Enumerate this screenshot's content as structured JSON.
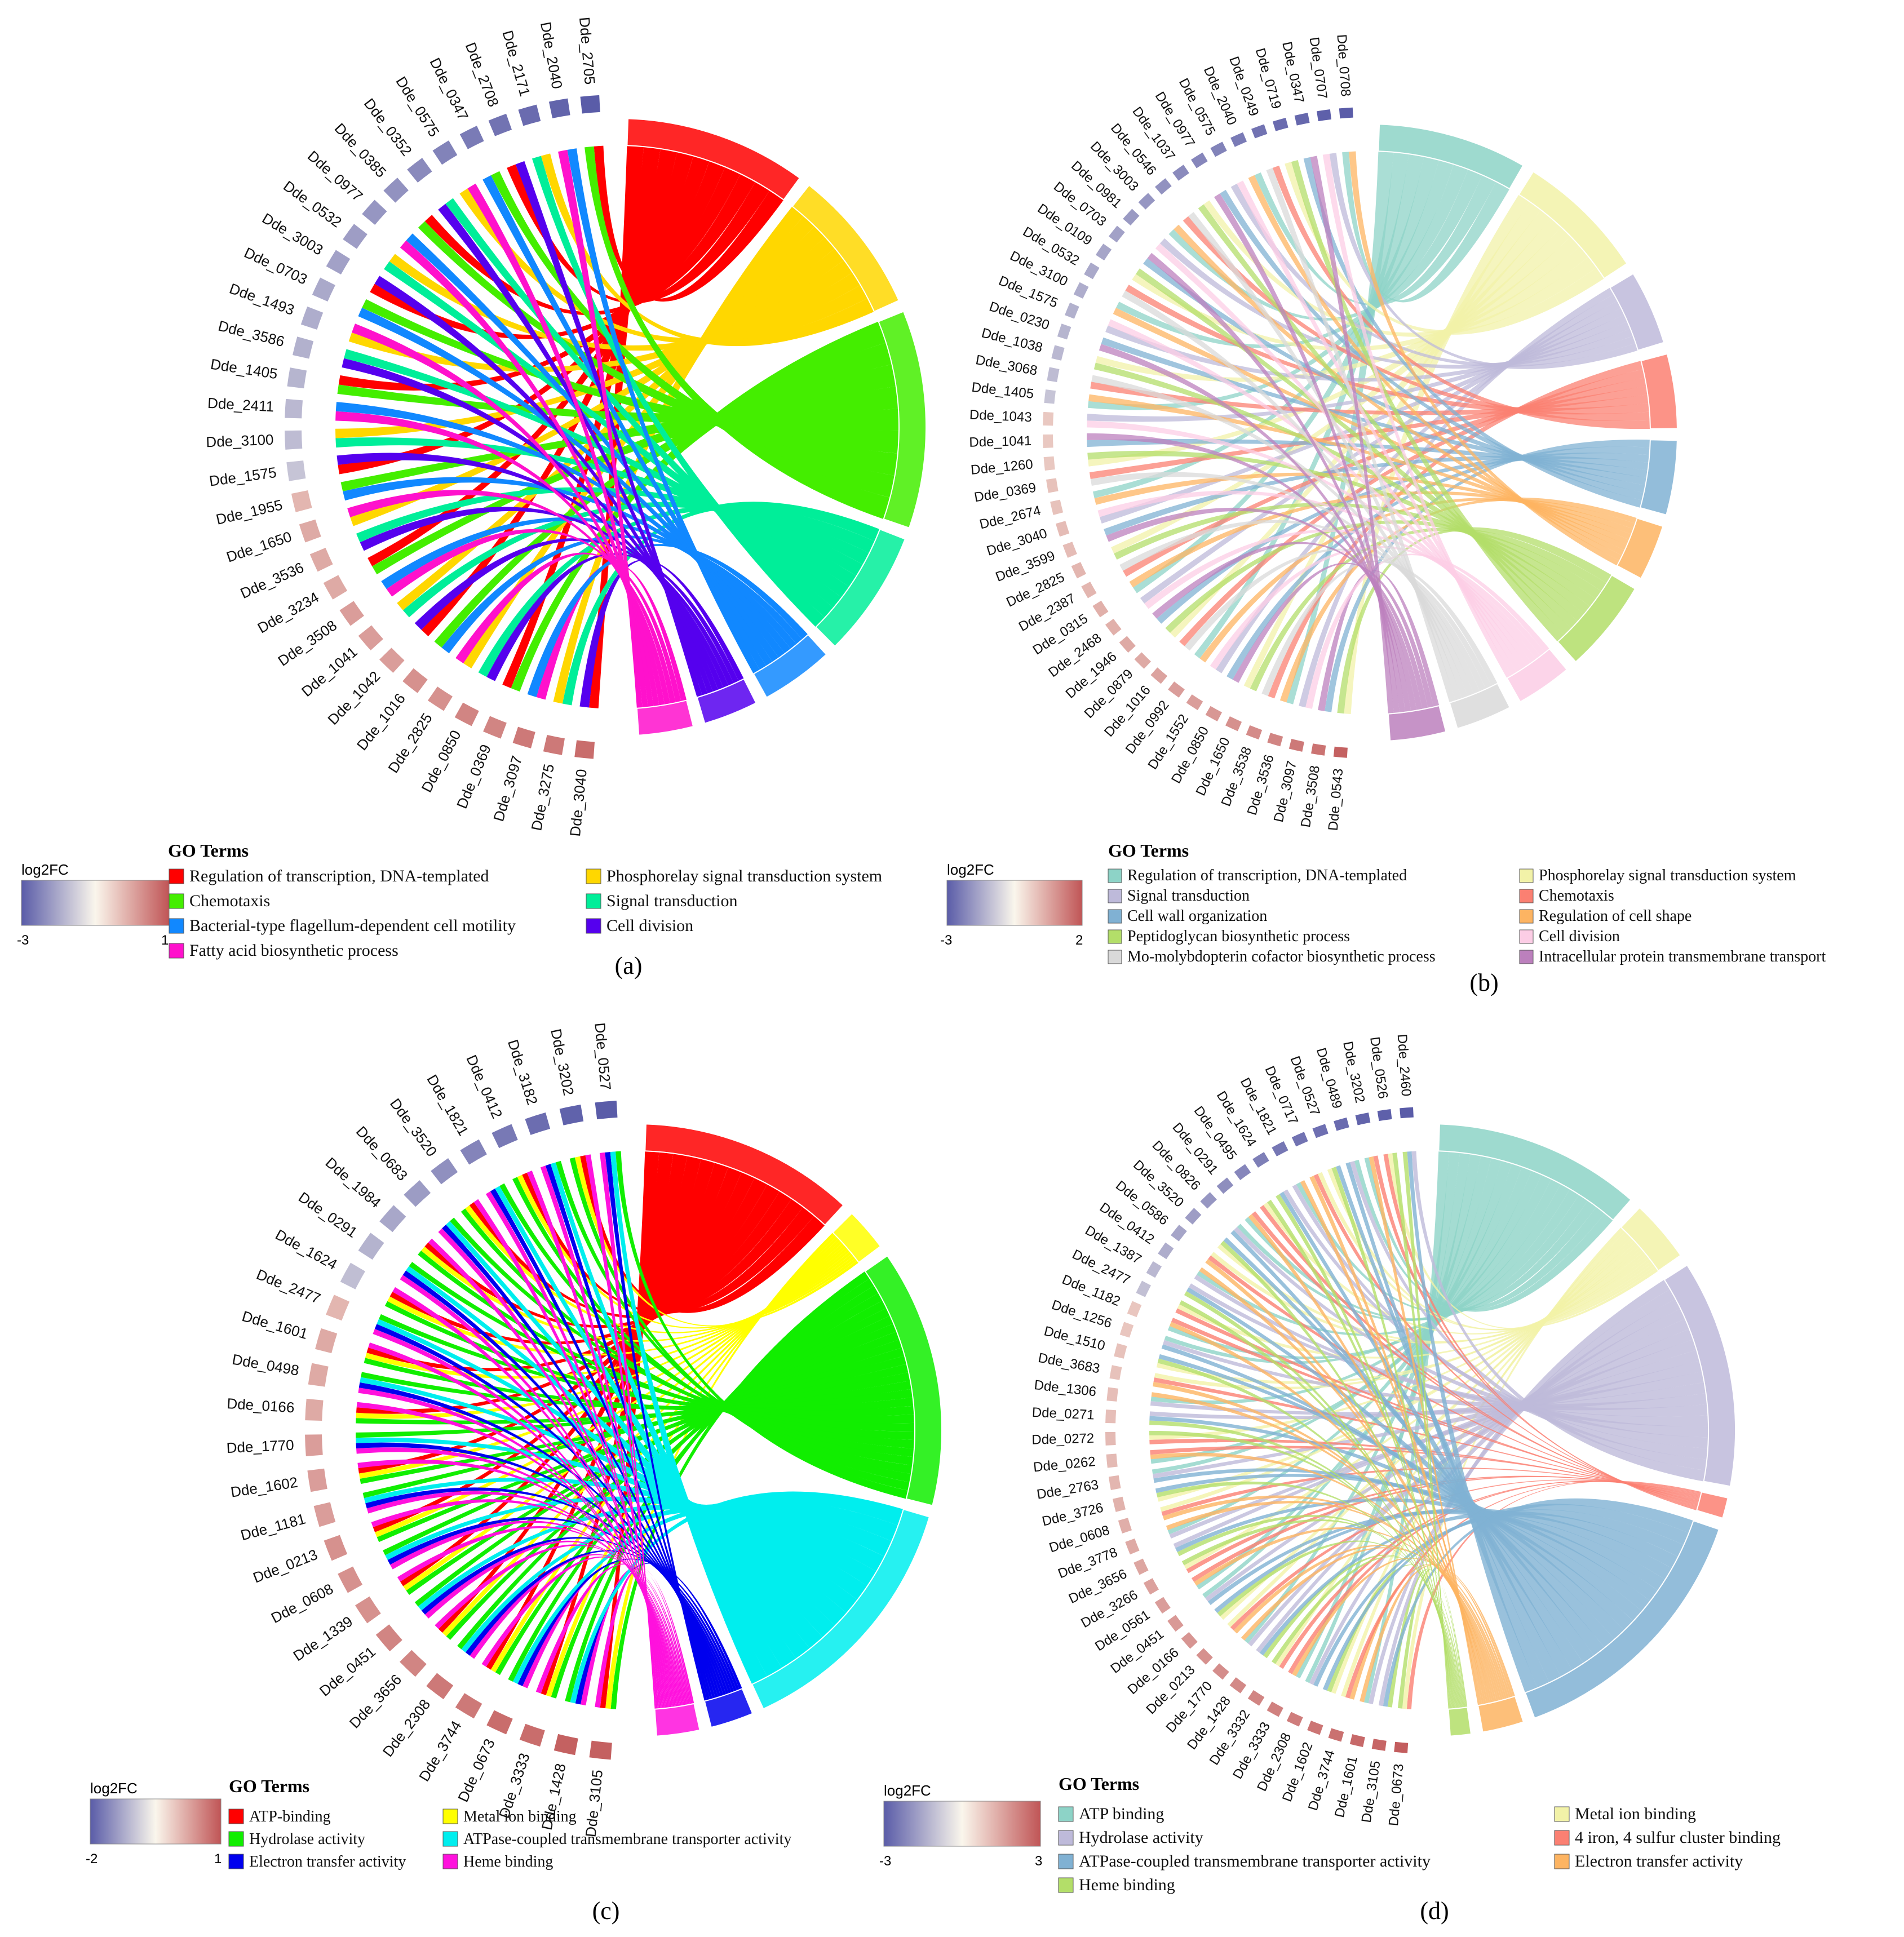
{
  "figure": {
    "panels": [
      "(a)",
      "(b)",
      "(c)",
      "(d)"
    ]
  },
  "chart_data": [
    {
      "id": "a",
      "type": "chord",
      "panel_label": "(a)",
      "legend_title": "GO Terms",
      "colorbar": {
        "label": "log2FC",
        "min": "-3",
        "max": "1"
      },
      "terms": [
        {
          "name": "Regulation of transcription, DNA-templated",
          "color": "#ff0000",
          "size": 10
        },
        {
          "name": "Phosphorelay signal transduction system",
          "color": "#ffd700",
          "size": 8
        },
        {
          "name": "Chemotaxis",
          "color": "#44ee00",
          "size": 12
        },
        {
          "name": "Signal transduction",
          "color": "#00ee99",
          "size": 7
        },
        {
          "name": "Bacterial-type flagellum-dependent cell motility",
          "color": "#1188ff",
          "size": 4
        },
        {
          "name": "Cell division",
          "color": "#5500ee",
          "size": 3
        },
        {
          "name": "Fatty acid biosynthetic process",
          "color": "#ff11cc",
          "size": 3
        }
      ],
      "legend_order": [
        0,
        2,
        4,
        6,
        1,
        3,
        5
      ],
      "genes": [
        "Dde_3040",
        "Dde_3275",
        "Dde_3097",
        "Dde_0369",
        "Dde_0850",
        "Dde_2825",
        "Dde_1016",
        "Dde_1042",
        "Dde_1041",
        "Dde_3508",
        "Dde_3234",
        "Dde_3536",
        "Dde_1650",
        "Dde_1955",
        "Dde_1575",
        "Dde_3100",
        "Dde_2411",
        "Dde_1405",
        "Dde_3586",
        "Dde_1493",
        "Dde_0703",
        "Dde_3003",
        "Dde_0532",
        "Dde_0977",
        "Dde_0385",
        "Dde_0352",
        "Dde_0575",
        "Dde_0347",
        "Dde_2708",
        "Dde_2171",
        "Dde_2040",
        "Dde_2705"
      ],
      "log2fc": [
        0.8,
        0.7,
        0.7,
        0.6,
        0.6,
        0.5,
        0.5,
        0.4,
        0.4,
        0.4,
        0.3,
        0.3,
        0.3,
        0.2,
        -0.3,
        -0.5,
        -0.6,
        -0.7,
        -0.8,
        -0.9,
        -1.0,
        -1.2,
        -1.3,
        -1.5,
        -1.6,
        -1.8,
        -2.0,
        -2.2,
        -2.4,
        -2.6,
        -2.8,
        -3.0
      ],
      "links_per_gene": 2,
      "link_opacity": 1.0
    },
    {
      "id": "b",
      "type": "chord",
      "panel_label": "(b)",
      "legend_title": "GO Terms",
      "colorbar": {
        "label": "log2FC",
        "min": "-3",
        "max": "2"
      },
      "terms": [
        {
          "name": "Regulation of transcription, DNA-templated",
          "color": "#8dd3c7",
          "size": 8
        },
        {
          "name": "Phosphorelay signal transduction system",
          "color": "#f2f2a8",
          "size": 7
        },
        {
          "name": "Signal transduction",
          "color": "#bebada",
          "size": 4
        },
        {
          "name": "Chemotaxis",
          "color": "#fb8072",
          "size": 4
        },
        {
          "name": "Cell wall organization",
          "color": "#80b1d3",
          "size": 4
        },
        {
          "name": "Regulation of cell shape",
          "color": "#fdb462",
          "size": 3
        },
        {
          "name": "Peptidoglycan biosynthetic process",
          "color": "#b3de69",
          "size": 5
        },
        {
          "name": "Cell division",
          "color": "#fccde5",
          "size": 3
        },
        {
          "name": "Mo-molybdopterin cofactor biosynthetic process",
          "color": "#d9d9d9",
          "size": 3
        },
        {
          "name": "Intracellular protein transmembrane transport",
          "color": "#bc80bd",
          "size": 3
        }
      ],
      "legend_order": [
        0,
        2,
        4,
        6,
        8,
        1,
        3,
        5,
        7,
        9
      ],
      "genes": [
        "Dde_0543",
        "Dde_3508",
        "Dde_3097",
        "Dde_3536",
        "Dde_3538",
        "Dde_1650",
        "Dde_0850",
        "Dde_1552",
        "Dde_0992",
        "Dde_1016",
        "Dde_0879",
        "Dde_1946",
        "Dde_2468",
        "Dde_0315",
        "Dde_2387",
        "Dde_2825",
        "Dde_3599",
        "Dde_3040",
        "Dde_2674",
        "Dde_0369",
        "Dde_1260",
        "Dde_1041",
        "Dde_1043",
        "Dde_1405",
        "Dde_3068",
        "Dde_1038",
        "Dde_0230",
        "Dde_1575",
        "Dde_3100",
        "Dde_0532",
        "Dde_0109",
        "Dde_0703",
        "Dde_0981",
        "Dde_3003",
        "Dde_0546",
        "Dde_1037",
        "Dde_0977",
        "Dde_0575",
        "Dde_2040",
        "Dde_0249",
        "Dde_0719",
        "Dde_0347",
        "Dde_0707",
        "Dde_0708"
      ],
      "log2fc": [
        1.8,
        1.5,
        1.4,
        1.2,
        1.1,
        1.0,
        0.9,
        0.8,
        0.8,
        0.7,
        0.6,
        0.6,
        0.5,
        0.5,
        0.4,
        0.4,
        0.3,
        0.3,
        0.2,
        0.2,
        0.1,
        0.1,
        0.1,
        -0.3,
        -0.5,
        -0.6,
        -0.7,
        -0.8,
        -0.9,
        -1.0,
        -1.1,
        -1.2,
        -1.4,
        -1.5,
        -1.6,
        -1.8,
        -1.9,
        -2.0,
        -2.2,
        -2.4,
        -2.6,
        -2.7,
        -2.9,
        -3.0
      ],
      "links_per_gene": 2,
      "link_opacity": 0.75
    },
    {
      "id": "c",
      "type": "chord",
      "panel_label": "(c)",
      "legend_title": "GO Terms",
      "colorbar": {
        "label": "log2FC",
        "min": "-2",
        "max": "1"
      },
      "terms": [
        {
          "name": "ATP-binding",
          "color": "#ff0000",
          "size": 10
        },
        {
          "name": "Metal ion binding",
          "color": "#ffff00",
          "size": 2
        },
        {
          "name": "Hydrolase activity",
          "color": "#11ee00",
          "size": 12
        },
        {
          "name": "ATPase-coupled transmembrane transporter activity",
          "color": "#00eeee",
          "size": 12
        },
        {
          "name": "Electron transfer activity",
          "color": "#0000ee",
          "size": 2
        },
        {
          "name": "Heme binding",
          "color": "#ff11dd",
          "size": 2
        }
      ],
      "legend_order": [
        0,
        2,
        4,
        1,
        3,
        5
      ],
      "genes": [
        "Dde_3105",
        "Dde_1428",
        "Dde_3333",
        "Dde_0673",
        "Dde_3744",
        "Dde_2308",
        "Dde_3656",
        "Dde_0451",
        "Dde_1339",
        "Dde_0608",
        "Dde_0213",
        "Dde_1181",
        "Dde_1602",
        "Dde_1770",
        "Dde_0166",
        "Dde_0498",
        "Dde_1601",
        "Dde_2477",
        "Dde_1624",
        "Dde_0291",
        "Dde_1984",
        "Dde_0683",
        "Dde_3520",
        "Dde_1821",
        "Dde_0412",
        "Dde_3182",
        "Dde_3202",
        "Dde_0527"
      ],
      "log2fc": [
        0.9,
        0.9,
        0.8,
        0.8,
        0.7,
        0.7,
        0.6,
        0.6,
        0.5,
        0.5,
        0.5,
        0.4,
        0.4,
        0.4,
        0.3,
        0.3,
        0.3,
        0.2,
        -0.3,
        -0.5,
        -0.7,
        -0.9,
        -1.1,
        -1.3,
        -1.5,
        -1.7,
        -1.9,
        -2.0
      ],
      "links_per_gene": 4,
      "link_opacity": 1.0
    },
    {
      "id": "d",
      "type": "chord",
      "panel_label": "(d)",
      "legend_title": "GO Terms",
      "colorbar": {
        "label": "log2FC",
        "min": "-3",
        "max": "3"
      },
      "terms": [
        {
          "name": "ATP binding",
          "color": "#8dd3c7",
          "size": 10
        },
        {
          "name": "Metal ion binding",
          "color": "#f2f2a8",
          "size": 3
        },
        {
          "name": "Hydrolase activity",
          "color": "#bebada",
          "size": 11
        },
        {
          "name": "4 iron, 4 sulfur cluster binding",
          "color": "#fb8072",
          "size": 1
        },
        {
          "name": "ATPase-coupled transmembrane transporter activity",
          "color": "#80b1d3",
          "size": 13
        },
        {
          "name": "Electron transfer activity",
          "color": "#fdb462",
          "size": 2
        },
        {
          "name": "Heme binding",
          "color": "#b3de69",
          "size": 1
        }
      ],
      "legend_order": [
        0,
        2,
        4,
        6,
        1,
        3,
        5
      ],
      "genes": [
        "Dde_0673",
        "Dde_3105",
        "Dde_1601",
        "Dde_3744",
        "Dde_1602",
        "Dde_2308",
        "Dde_3333",
        "Dde_3332",
        "Dde_1428",
        "Dde_1770",
        "Dde_0213",
        "Dde_0166",
        "Dde_0451",
        "Dde_0561",
        "Dde_3266",
        "Dde_3656",
        "Dde_3778",
        "Dde_0608",
        "Dde_3726",
        "Dde_2763",
        "Dde_0262",
        "Dde_0272",
        "Dde_0271",
        "Dde_1306",
        "Dde_3683",
        "Dde_1510",
        "Dde_1256",
        "Dde_1182",
        "Dde_2477",
        "Dde_1387",
        "Dde_0412",
        "Dde_0586",
        "Dde_3520",
        "Dde_0826",
        "Dde_0291",
        "Dde_0495",
        "Dde_1624",
        "Dde_1821",
        "Dde_0717",
        "Dde_0527",
        "Dde_0489",
        "Dde_3202",
        "Dde_0526",
        "Dde_2460"
      ],
      "log2fc": [
        2.8,
        2.6,
        2.5,
        2.3,
        2.2,
        2.0,
        1.9,
        1.8,
        1.7,
        1.6,
        1.5,
        1.4,
        1.3,
        1.2,
        1.1,
        1.0,
        0.9,
        0.8,
        0.7,
        0.6,
        0.5,
        0.5,
        0.4,
        0.4,
        0.3,
        0.3,
        0.2,
        0.2,
        -0.4,
        -0.6,
        -0.9,
        -1.1,
        -1.3,
        -1.5,
        -1.7,
        -1.9,
        -2.1,
        -2.3,
        -2.4,
        -2.5,
        -2.6,
        -2.8,
        -2.9,
        -3.0
      ],
      "links_per_gene": 3,
      "link_opacity": 0.8
    }
  ]
}
